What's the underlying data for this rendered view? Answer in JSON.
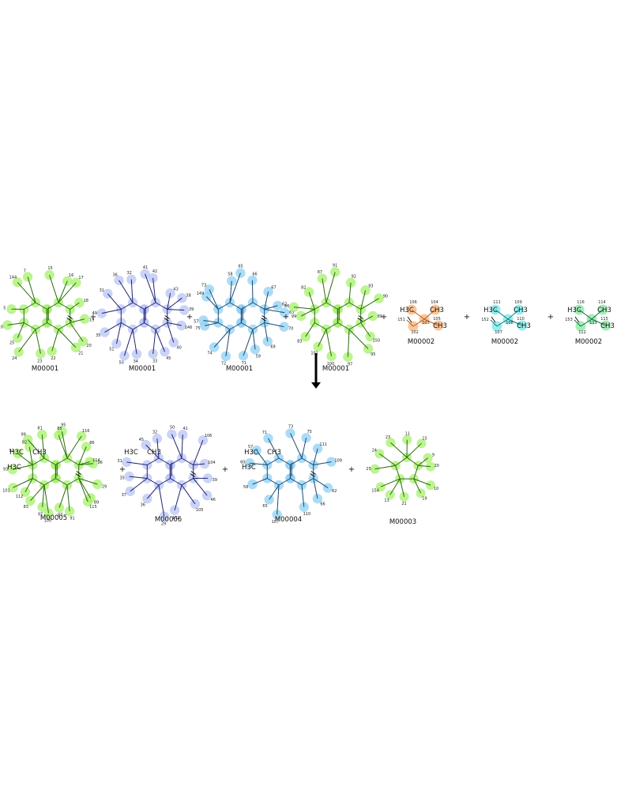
{
  "molecules": [
    {
      "label": "M00001",
      "color": "#a6f06a",
      "bond": "#2a6a10",
      "numbers": [
        "15",
        "16",
        "17",
        "18",
        "19",
        "20",
        "21",
        "22",
        "23",
        "24",
        "25",
        "10",
        "5",
        "144",
        "7"
      ]
    },
    {
      "label": "M00001",
      "color": "#b8c4f4",
      "bond": "#202070",
      "numbers": [
        "41",
        "42",
        "43",
        "38",
        "39",
        "146",
        "40",
        "45",
        "33",
        "34",
        "50",
        "51",
        "35",
        "49",
        "31",
        "36",
        "32"
      ]
    },
    {
      "label": "M00001",
      "color": "#8fd0f4",
      "bond": "#184870",
      "numbers": [
        "65",
        "66",
        "67",
        "62",
        "63",
        "70",
        "69",
        "59",
        "71",
        "72",
        "74",
        "75",
        "57",
        "149",
        "73",
        "58"
      ]
    },
    {
      "label": "M00001",
      "color": "#a6f06a",
      "bond": "#2a6a10",
      "numbers": [
        "91",
        "92",
        "93",
        "90",
        "89",
        "150",
        "95",
        "97",
        "100",
        "101",
        "83",
        "99",
        "86",
        "82",
        "87"
      ]
    },
    {
      "label": "M00002",
      "color": "#f8b880",
      "bond": "#c05a10",
      "atoms": [
        "H3C",
        "CH3",
        "CH3"
      ],
      "numbers": [
        "106",
        "104",
        "151",
        "105",
        "102",
        "103"
      ]
    },
    {
      "label": "M00002",
      "color": "#7ee8e8",
      "bond": "#108080",
      "atoms": [
        "H3C",
        "CH3",
        "CH3"
      ],
      "numbers": [
        "111",
        "109",
        "152",
        "110",
        "107",
        "108"
      ]
    },
    {
      "label": "M00002",
      "color": "#8ee8a8",
      "bond": "#107040",
      "atoms": [
        "H3C",
        "CH3",
        "CH3"
      ],
      "numbers": [
        "116",
        "114",
        "153",
        "115",
        "112",
        "113"
      ]
    },
    {
      "label": "M00005",
      "color": "#a6f06a",
      "bond": "#2a6a10",
      "atoms": [
        "H3C",
        "CH3",
        "H3C"
      ],
      "numbers": [
        "85",
        "95",
        "116",
        "86",
        "114",
        "96",
        "29",
        "89",
        "115",
        "91",
        "87",
        "100",
        "97",
        "83",
        "112",
        "101",
        "93",
        "92",
        "82",
        "99",
        "81"
      ]
    },
    {
      "label": "M00006",
      "color": "#b8c4f4",
      "bond": "#202070",
      "atoms": [
        "H3C",
        "CH3"
      ],
      "numbers": [
        "50",
        "41",
        "106",
        "104",
        "39",
        "46",
        "105",
        "102",
        "29",
        "36",
        "37",
        "35",
        "31",
        "45",
        "32"
      ]
    },
    {
      "label": "M00004",
      "color": "#8fd0f4",
      "bond": "#184870",
      "atoms": [
        "H3C",
        "CH3",
        "H3C"
      ],
      "numbers": [
        "73",
        "75",
        "111",
        "109",
        "62",
        "66",
        "110",
        "107",
        "65",
        "58",
        "60",
        "57",
        "71"
      ]
    },
    {
      "label": "M00003",
      "color": "#a6f06a",
      "bond": "#2a6a10",
      "numbers": [
        "11",
        "15",
        "9",
        "20",
        "10",
        "19",
        "21",
        "13",
        "154",
        "25",
        "24",
        "23"
      ]
    }
  ],
  "operators": {
    "plus": "+"
  },
  "reaction_arrow": "down"
}
